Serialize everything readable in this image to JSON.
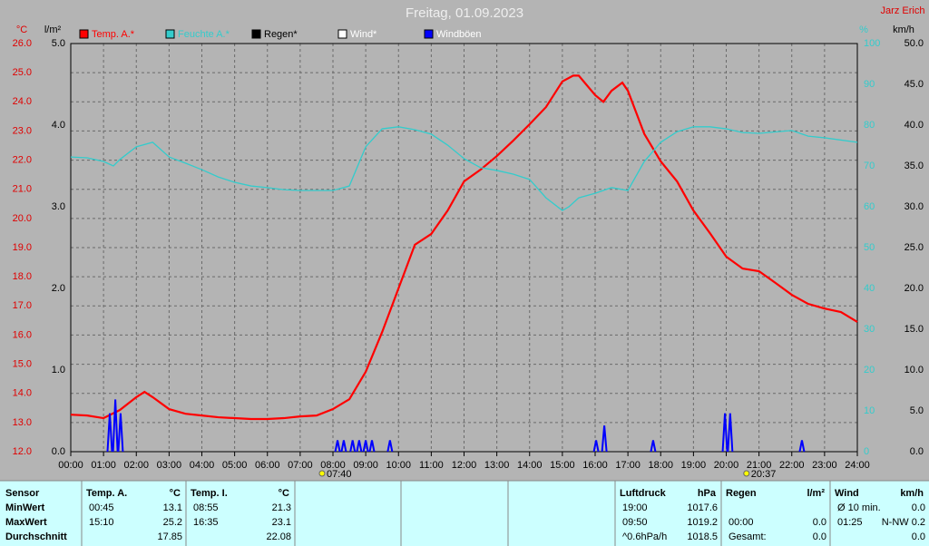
{
  "chart_data": {
    "type": "line",
    "title": "Freitag, 01.09.2023",
    "author": "Jarz Erich",
    "grid": true,
    "xlim": [
      0,
      24
    ],
    "xticks": [
      {
        "value": 0,
        "label": "00:00"
      },
      {
        "value": 1,
        "label": "01:00"
      },
      {
        "value": 2,
        "label": "02:00"
      },
      {
        "value": 3,
        "label": "03:00"
      },
      {
        "value": 4,
        "label": "04:00"
      },
      {
        "value": 5,
        "label": "05:00"
      },
      {
        "value": 6,
        "label": "06:00"
      },
      {
        "value": 7,
        "label": "07:00"
      },
      {
        "value": 8,
        "label": "08:00"
      },
      {
        "value": 9,
        "label": "09:00"
      },
      {
        "value": 10,
        "label": "10:00"
      },
      {
        "value": 11,
        "label": "11:00"
      },
      {
        "value": 12,
        "label": "12:00"
      },
      {
        "value": 13,
        "label": "13:00"
      },
      {
        "value": 14,
        "label": "14:00"
      },
      {
        "value": 15,
        "label": "15:00"
      },
      {
        "value": 16,
        "label": "16:00"
      },
      {
        "value": 17,
        "label": "17:00"
      },
      {
        "value": 18,
        "label": "18:00"
      },
      {
        "value": 19,
        "label": "19:00"
      },
      {
        "value": 20,
        "label": "20:00"
      },
      {
        "value": 21,
        "label": "21:00"
      },
      {
        "value": 22,
        "label": "22:00"
      },
      {
        "value": 23,
        "label": "23:00"
      },
      {
        "value": 24,
        "label": "24:00"
      }
    ],
    "axes": [
      {
        "label": "°C",
        "color": "#e00000",
        "lim": [
          12,
          26
        ],
        "ticks": [
          {
            "value": 12,
            "label": "12.0"
          },
          {
            "value": 13,
            "label": "13.0"
          },
          {
            "value": 14,
            "label": "14.0"
          },
          {
            "value": 15,
            "label": "15.0"
          },
          {
            "value": 16,
            "label": "16.0"
          },
          {
            "value": 17,
            "label": "17.0"
          },
          {
            "value": 18,
            "label": "18.0"
          },
          {
            "value": 19,
            "label": "19.0"
          },
          {
            "value": 20,
            "label": "20.0"
          },
          {
            "value": 21,
            "label": "21.0"
          },
          {
            "value": 22,
            "label": "22.0"
          },
          {
            "value": 23,
            "label": "23.0"
          },
          {
            "value": 24,
            "label": "24.0"
          },
          {
            "value": 25,
            "label": "25.0"
          },
          {
            "value": 26,
            "label": "26.0"
          }
        ]
      },
      {
        "label": "l/m²",
        "color": "#000000",
        "lim": [
          0,
          5
        ],
        "ticks": [
          {
            "value": 0,
            "label": "0.0"
          },
          {
            "value": 1,
            "label": "1.0"
          },
          {
            "value": 2,
            "label": "2.0"
          },
          {
            "value": 3,
            "label": "3.0"
          },
          {
            "value": 4,
            "label": "4.0"
          },
          {
            "value": 5,
            "label": "5.0"
          }
        ]
      },
      {
        "label": "%",
        "color": "#33cccc",
        "lim": [
          0,
          100
        ],
        "ticks": [
          0,
          10,
          20,
          30,
          40,
          50,
          60,
          70,
          80,
          90,
          100
        ]
      },
      {
        "label": "km/h",
        "color": "#000000",
        "lim": [
          0,
          50
        ],
        "ticks": [
          {
            "value": 0,
            "label": "0.0"
          },
          {
            "value": 5,
            "label": "5.0"
          },
          {
            "value": 10,
            "label": "10.0"
          },
          {
            "value": 15,
            "label": "15.0"
          },
          {
            "value": 20,
            "label": "20.0"
          },
          {
            "value": 25,
            "label": "25.0"
          },
          {
            "value": 30,
            "label": "30.0"
          },
          {
            "value": 35,
            "label": "35.0"
          },
          {
            "value": 40,
            "label": "40.0"
          },
          {
            "value": 45,
            "label": "45.0"
          },
          {
            "value": 50,
            "label": "50.0"
          }
        ]
      }
    ],
    "series": [
      {
        "name": "Temp. A.*",
        "color": "#ff0000",
        "axis": 0,
        "style": "line",
        "x": [
          0,
          0.5,
          1,
          1.5,
          2,
          2.25,
          2.5,
          3,
          3.5,
          4,
          4.5,
          5,
          5.5,
          6,
          6.5,
          7,
          7.5,
          8,
          8.5,
          9,
          9.5,
          10,
          10.5,
          11,
          11.5,
          12,
          12.5,
          13,
          13.5,
          14,
          14.5,
          15,
          15.33,
          15.5,
          16,
          16.25,
          16.5,
          16.83,
          17,
          17.5,
          18,
          18.5,
          19,
          19.5,
          20,
          20.5,
          21,
          21.5,
          22,
          22.5,
          23,
          23.5,
          24
        ],
        "values": [
          13.27,
          13.24,
          13.15,
          13.43,
          13.87,
          14.05,
          13.87,
          13.46,
          13.3,
          13.24,
          13.18,
          13.15,
          13.12,
          13.12,
          13.15,
          13.21,
          13.24,
          13.46,
          13.8,
          14.74,
          16.1,
          17.6,
          19.1,
          19.47,
          20.27,
          21.27,
          21.67,
          22.14,
          22.67,
          23.23,
          23.82,
          24.7,
          24.9,
          24.9,
          24.23,
          24.0,
          24.38,
          24.66,
          24.38,
          22.9,
          21.96,
          21.27,
          20.27,
          19.5,
          18.69,
          18.28,
          18.19,
          17.79,
          17.38,
          17.07,
          16.91,
          16.79,
          16.45
        ]
      },
      {
        "name": "Feuchte A.*",
        "color": "#33cccc",
        "axis": 2,
        "style": "line",
        "x": [
          0,
          0.5,
          1,
          1.3,
          1.5,
          2,
          2.5,
          3,
          3.5,
          4,
          4.5,
          5,
          5.5,
          6,
          6.5,
          7,
          7.5,
          8,
          8.5,
          9,
          9.5,
          10,
          10.5,
          11,
          11.5,
          12,
          12.5,
          13,
          13.5,
          14,
          14.5,
          15,
          15.2,
          15.5,
          16,
          16.5,
          17,
          17.5,
          18,
          18.5,
          19,
          19.5,
          20,
          20.5,
          21,
          22,
          22.5,
          23,
          24
        ],
        "values": [
          72.2,
          72,
          71.1,
          70,
          71.6,
          74.7,
          75.8,
          72.2,
          70.7,
          69.1,
          67.3,
          66,
          65.1,
          64.7,
          64.2,
          64,
          64,
          64,
          65.1,
          74.7,
          79.1,
          79.6,
          78.9,
          77.8,
          75.1,
          71.8,
          69.6,
          68.9,
          68,
          66.7,
          62.2,
          59.1,
          60,
          62.2,
          63.3,
          64.7,
          64,
          71.1,
          75.8,
          78.4,
          79.6,
          79.6,
          79.1,
          78.2,
          78,
          78.7,
          77.3,
          76.9,
          75.8
        ]
      },
      {
        "name": "Regen*",
        "color": "#000000",
        "axis": 1
      },
      {
        "name": "Wind*",
        "color": "#ffffff",
        "axis": 3
      },
      {
        "name": "Windböen",
        "color": "#0000ff",
        "axis": 3,
        "style": "spikes",
        "x": [
          1.19,
          1.36,
          1.52,
          8.14,
          8.33,
          8.6,
          8.8,
          9.0,
          9.19,
          9.74,
          16.03,
          16.28,
          17.77,
          19.96,
          20.12,
          22.31
        ],
        "values": [
          4.7,
          6.4,
          4.7,
          1.4,
          1.4,
          1.4,
          1.4,
          1.4,
          1.4,
          1.4,
          1.4,
          3.2,
          1.4,
          4.7,
          4.7,
          1.4
        ]
      }
    ],
    "sun": [
      {
        "x": 7.667,
        "label": "07:40"
      },
      {
        "x": 20.617,
        "label": "20:37"
      }
    ]
  },
  "table": {
    "header": "Sensor",
    "row_labels": [
      "MinWert",
      "MaxWert",
      "Durchschnitt"
    ],
    "sections": [
      {
        "name": "Temp. A.",
        "unit": "°C",
        "rows": [
          {
            "time": "00:45",
            "value": "13.1"
          },
          {
            "time": "15:10",
            "value": "25.2"
          },
          {
            "value": "17.85"
          }
        ]
      },
      {
        "name": "Temp. I.",
        "unit": "°C",
        "rows": [
          {
            "time": "08:55",
            "value": "21.3"
          },
          {
            "time": "16:35",
            "value": "23.1"
          },
          {
            "value": "22.08"
          }
        ]
      },
      {
        "name": "Luftdruck",
        "unit": "hPa",
        "rows": [
          {
            "time": "19:00",
            "value": "1017.6"
          },
          {
            "time": "09:50",
            "value": "1019.2"
          },
          {
            "time": "^0.6hPa/h",
            "value": "1018.5"
          }
        ]
      },
      {
        "name": "Regen",
        "unit": "l/m²",
        "rows": [
          null,
          {
            "time": "00:00",
            "value": "0.0"
          },
          {
            "time": "Gesamt:",
            "value": "0.0"
          }
        ]
      },
      {
        "name": "Wind",
        "unit": "km/h",
        "rows": [
          {
            "time": "Ø 10 min.",
            "value": "0.0"
          },
          {
            "time": "01:25",
            "value": "N-NW 0.2"
          },
          {
            "value": "0.0"
          }
        ]
      }
    ]
  }
}
